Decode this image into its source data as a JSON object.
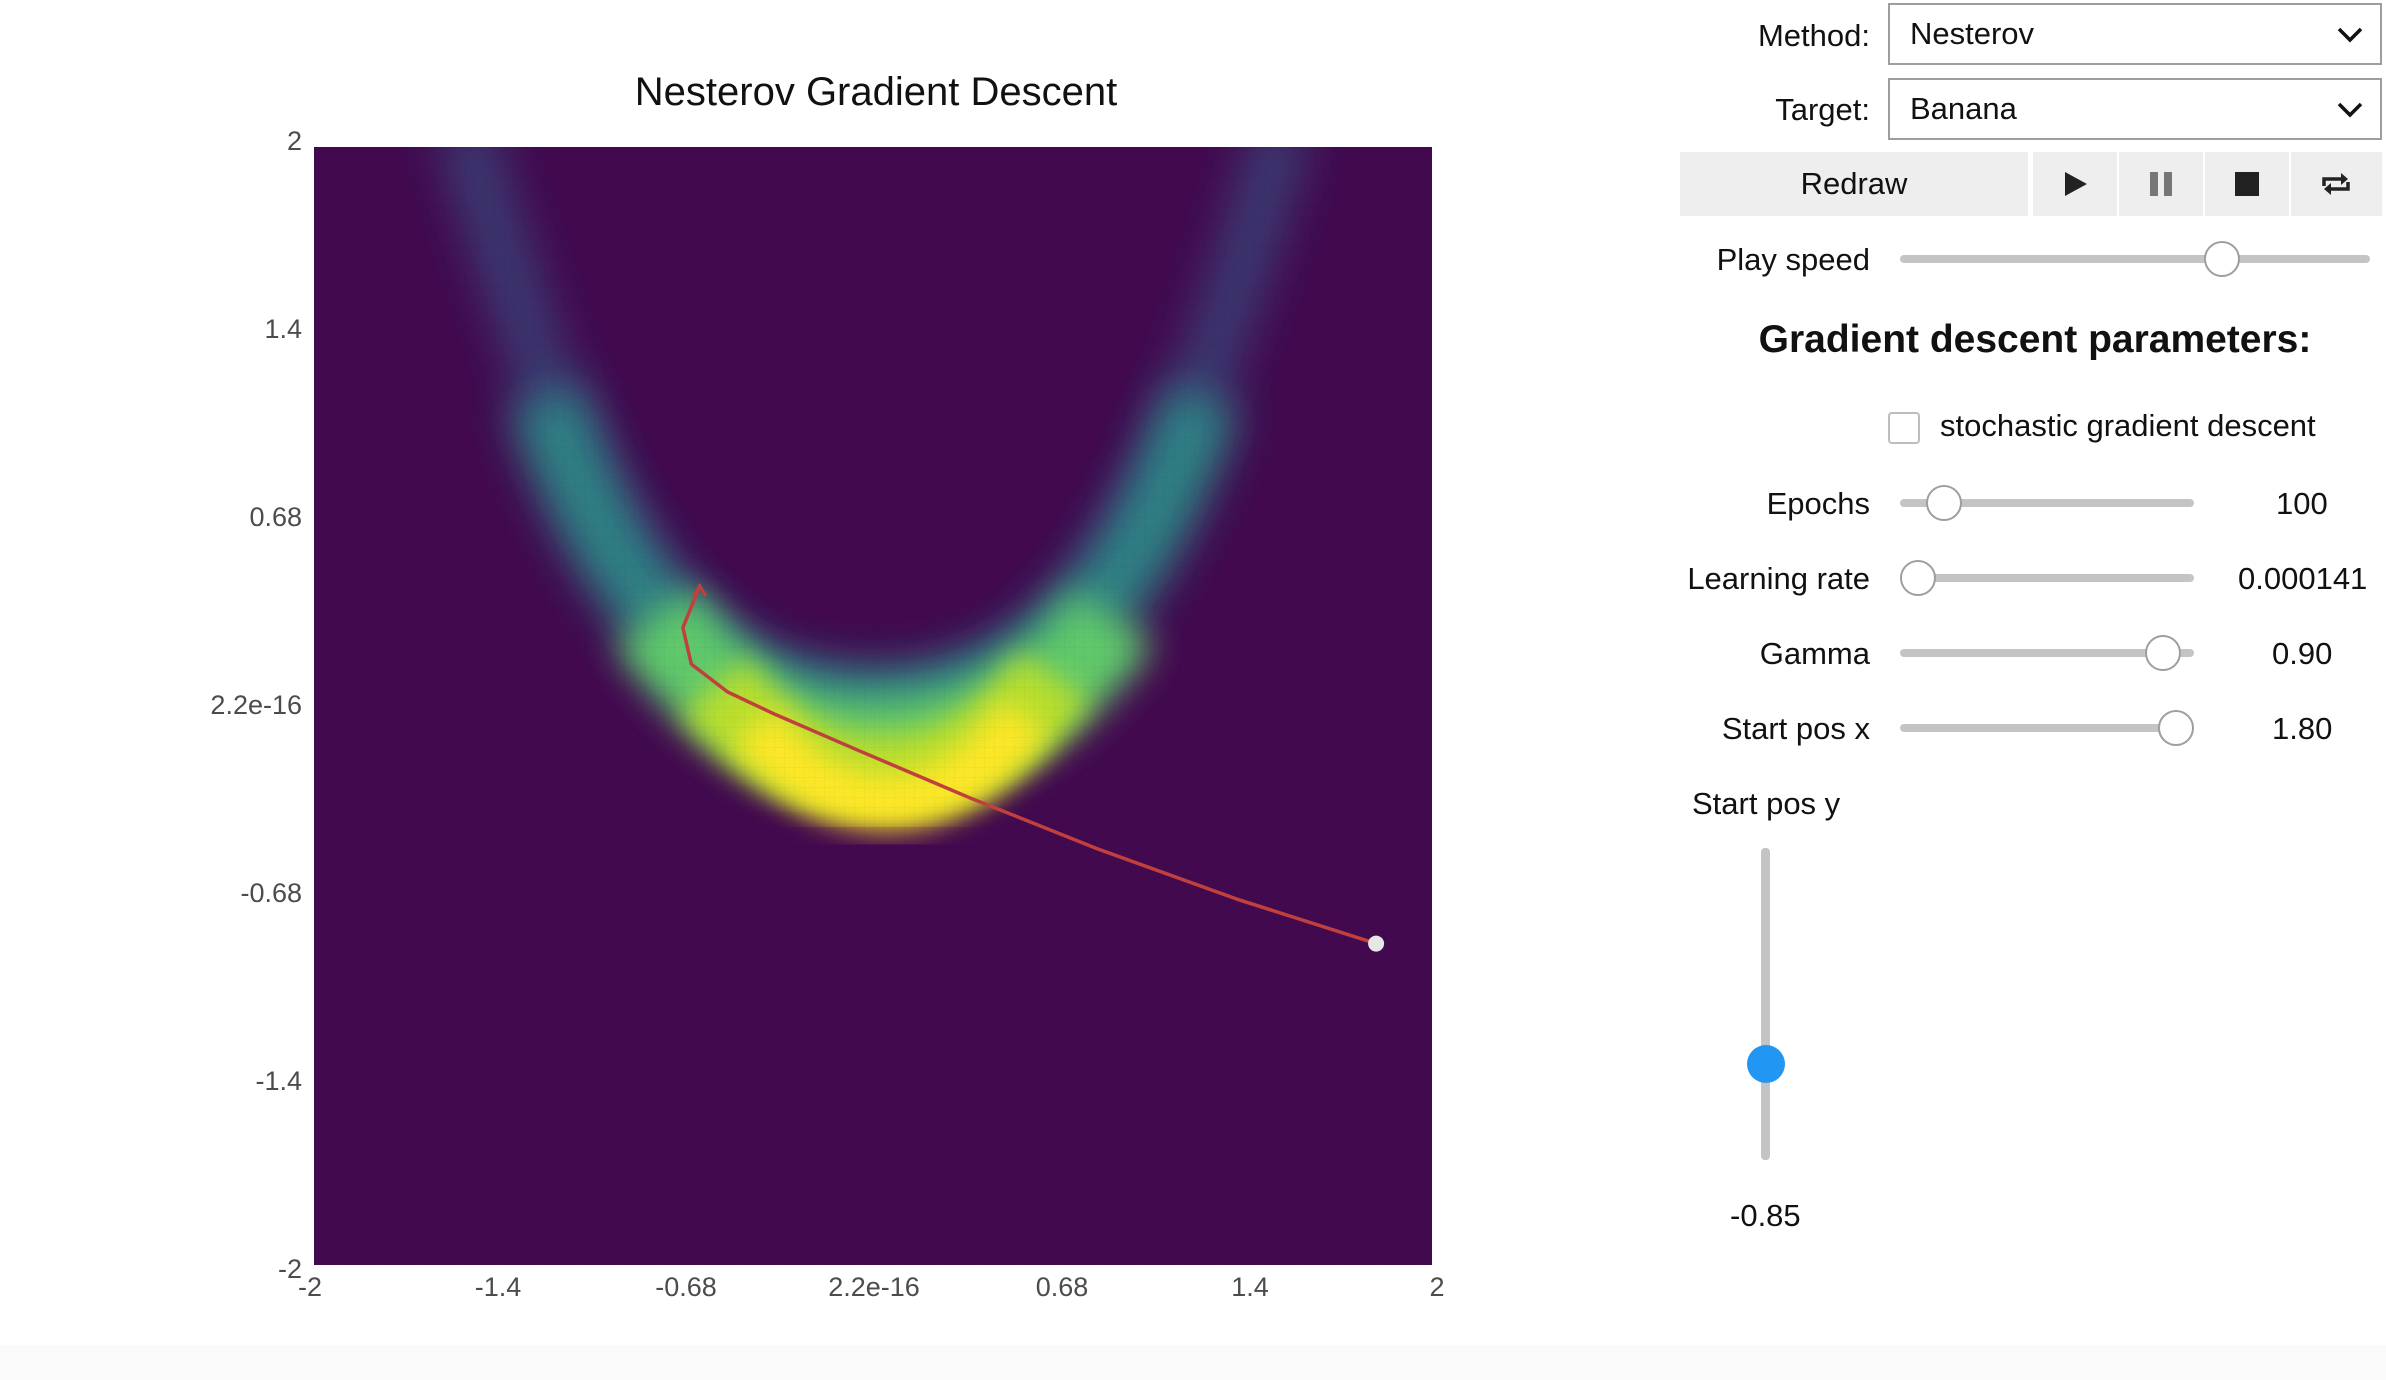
{
  "plot": {
    "title": "Nesterov Gradient Descent",
    "y_ticks": [
      "2",
      "1.4",
      "0.68",
      "2.2e-16",
      "-0.68",
      "-1.4",
      "-2"
    ],
    "x_ticks": [
      "-2",
      "-1.4",
      "-0.68",
      "2.2e-16",
      "0.68",
      "1.4",
      "2"
    ],
    "range": [
      -2,
      2
    ],
    "colormap": "viridis",
    "background_color": "#42094f",
    "path_color": "#c1403d",
    "start_marker_color": "#e6e6e6",
    "path": [
      [
        1.8,
        -0.85
      ],
      [
        1.3,
        -0.69
      ],
      [
        0.8,
        -0.51
      ],
      [
        0.35,
        -0.33
      ],
      [
        -0.05,
        -0.16
      ],
      [
        -0.35,
        -0.03
      ],
      [
        -0.52,
        0.05
      ],
      [
        -0.65,
        0.15
      ],
      [
        -0.68,
        0.28
      ],
      [
        -0.62,
        0.43
      ]
    ],
    "start_point": [
      1.8,
      -0.85
    ]
  },
  "controls": {
    "method": {
      "label": "Method:",
      "value": "Nesterov"
    },
    "target": {
      "label": "Target:",
      "value": "Banana"
    },
    "redraw_label": "Redraw",
    "play_speed": {
      "label": "Play speed",
      "level": 0.7
    }
  },
  "params": {
    "heading": "Gradient descent parameters:",
    "sgd": {
      "label": "stochastic gradient descent",
      "checked": false
    },
    "epochs": {
      "label": "Epochs",
      "value": "100",
      "level": 0.1
    },
    "learning_rate": {
      "label": "Learning rate",
      "value": "0.000141",
      "level": 0.0
    },
    "gamma": {
      "label": "Gamma",
      "value": "0.90",
      "level": 0.95
    },
    "start_x": {
      "label": "Start pos x",
      "value": "1.80",
      "level": 1.0
    },
    "start_y": {
      "label": "Start pos y",
      "value": "-0.85",
      "level": 0.28
    }
  }
}
